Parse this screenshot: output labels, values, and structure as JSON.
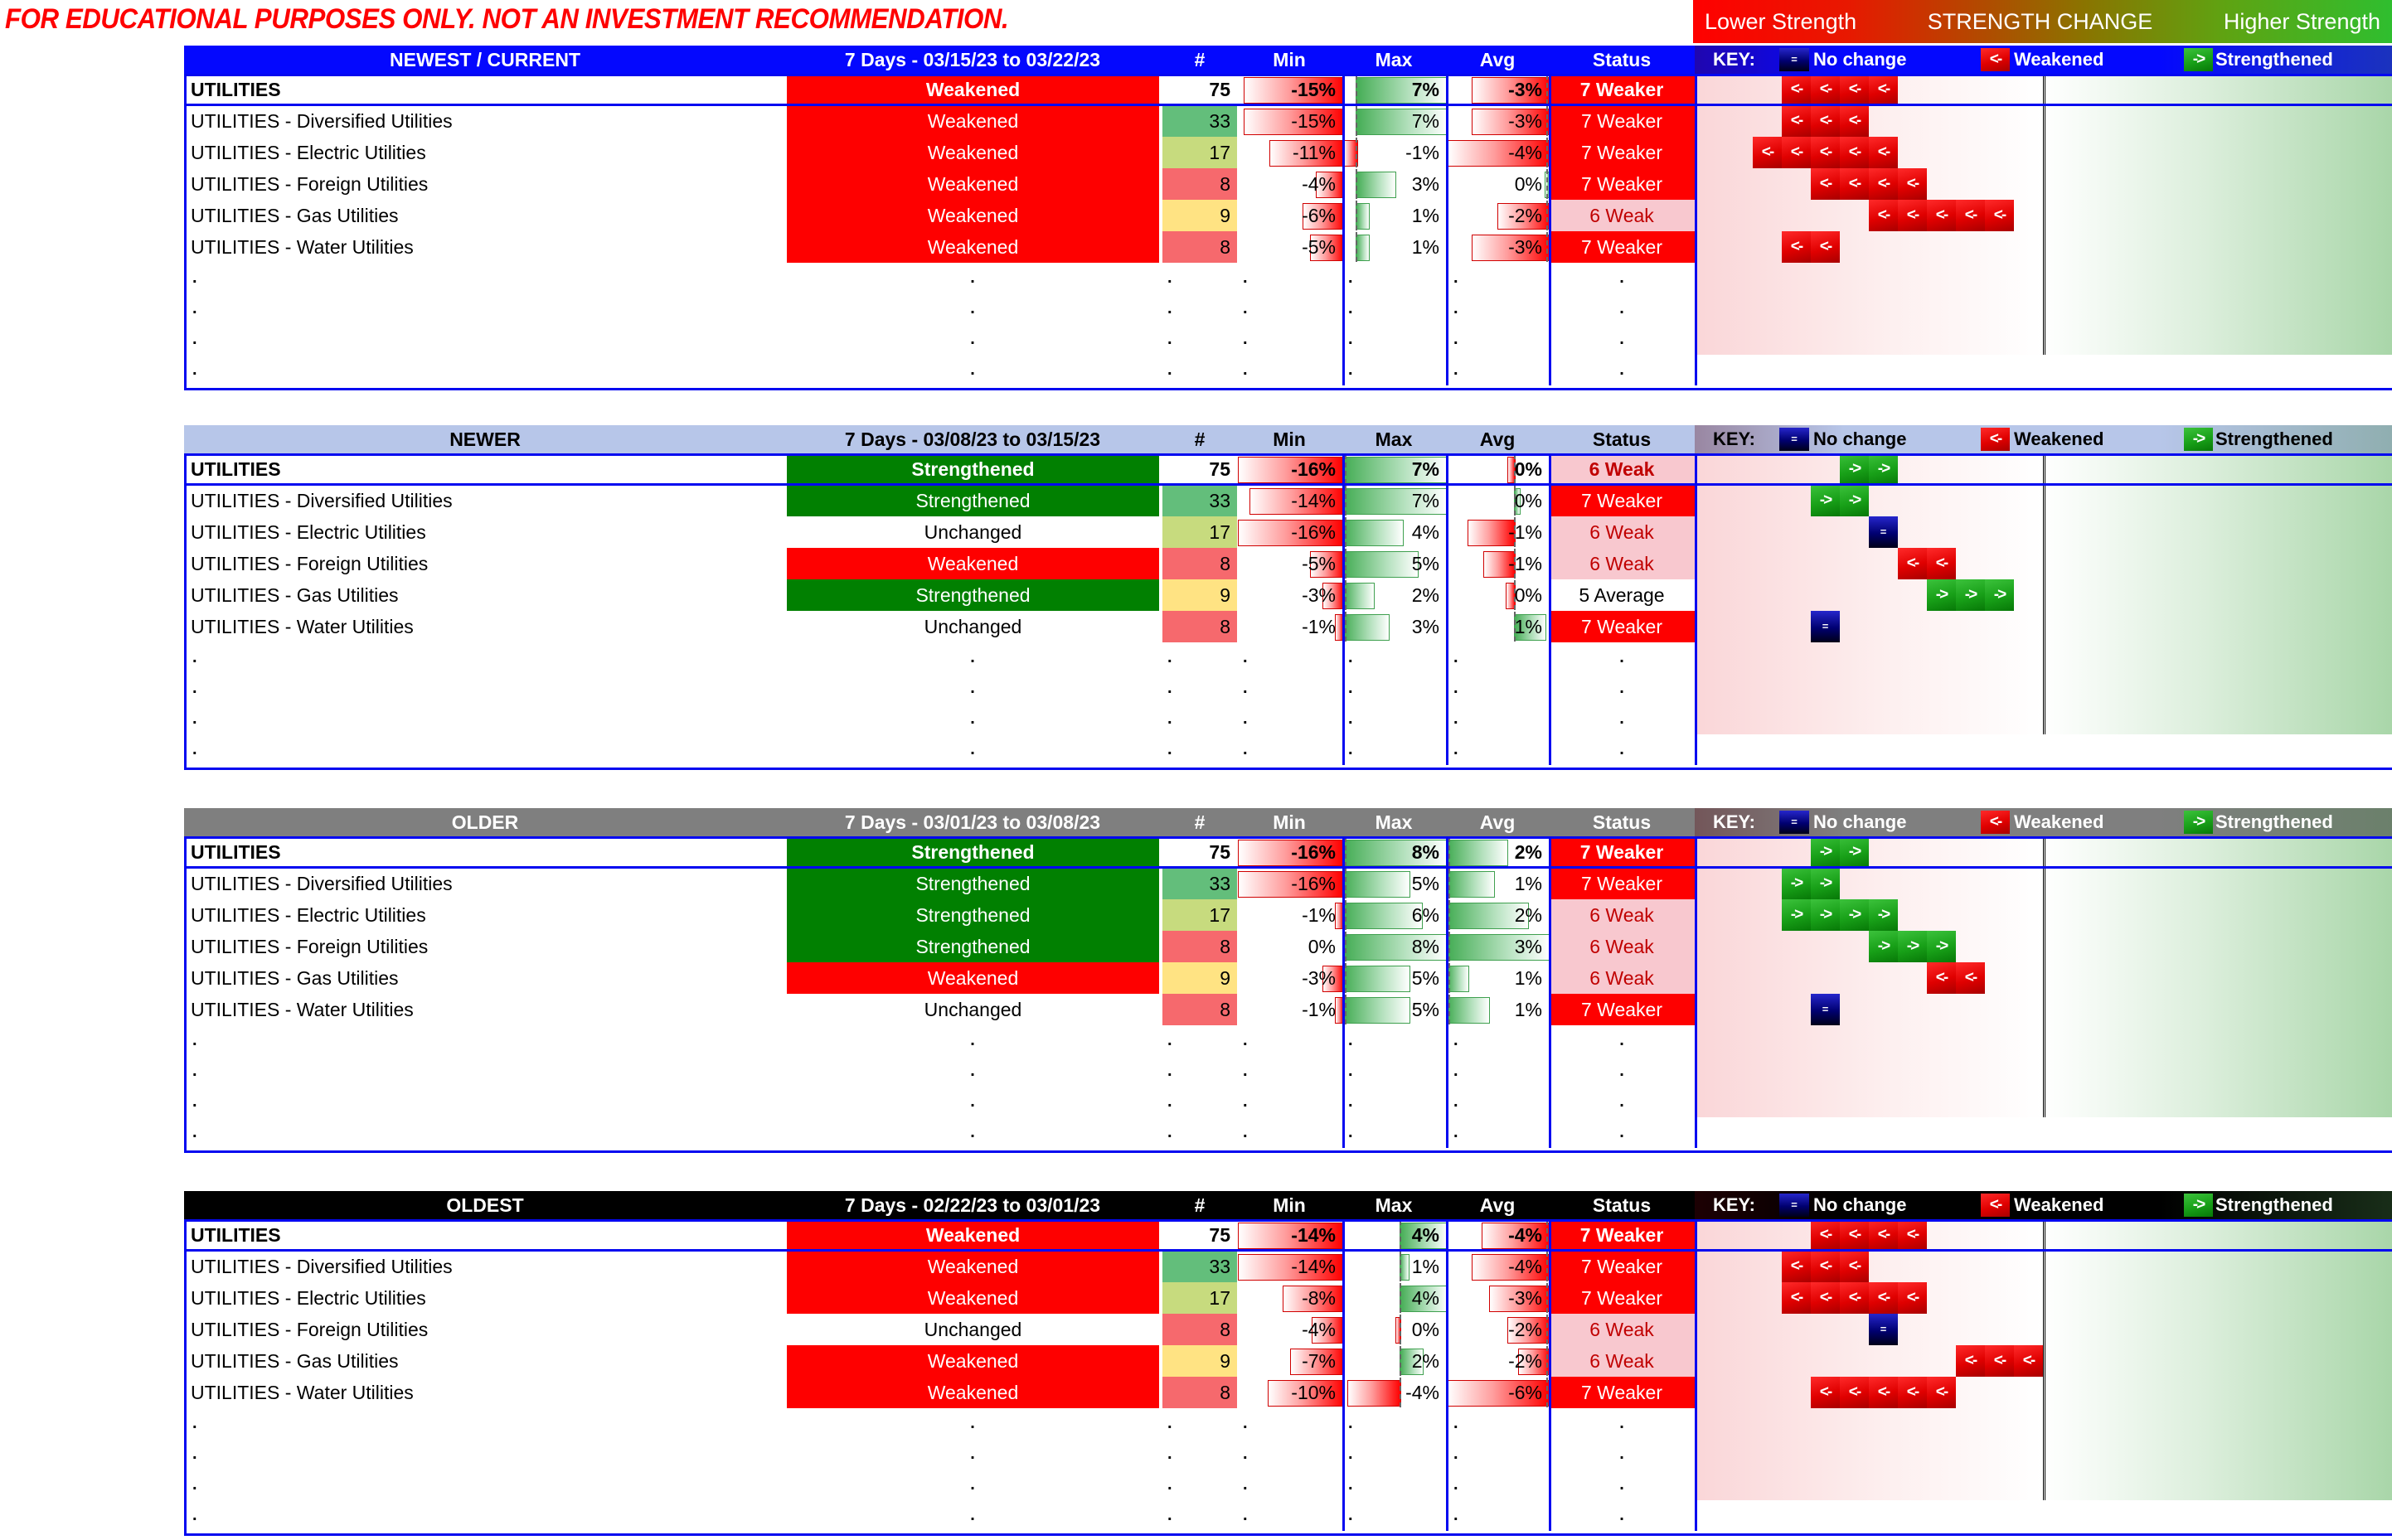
{
  "disclaimer": "FOR EDUCATIONAL PURPOSES ONLY. NOT AN INVESTMENT RECOMMENDATION.",
  "strength_scale": {
    "left": "Lower Strength",
    "center": "STRENGTH CHANGE",
    "right": "Higher Strength"
  },
  "legend": {
    "key_label": "KEY:",
    "no_change": "No change",
    "weakened": "Weakened",
    "strengthened": "Strengthened",
    "no_change_glyph": "=",
    "weakened_glyph": "<-",
    "strengthened_glyph": "->"
  },
  "columns": {
    "num": "#",
    "min": "Min",
    "max": "Max",
    "avg": "Avg",
    "status": "Status"
  },
  "dot": ".",
  "colors": {
    "blue_border": "#0408F0",
    "weakened_bg": "#FE0000",
    "strengthened_bg": "#018001",
    "status_weaker_bg": "#FE0000",
    "status_weak_bg": "#F8C8CF",
    "status_weak_fg": "#C00000",
    "count_scale": [
      "#63BE7B",
      "#C7DB7E",
      "#F6696D",
      "#FFE383"
    ]
  },
  "tables": [
    {
      "period_label": "NEWEST / CURRENT",
      "date_range": "7 Days - 03/15/23 to 03/22/23",
      "header_bg": "#0408FE",
      "header_fg": "#FFFFFF",
      "rows": [
        {
          "name": "UTILITIES",
          "change": "Weakened",
          "num": "75",
          "num_bg": "#FFFFFF",
          "min": "-15%",
          "max": "7%",
          "avg": "-3%",
          "status": "7 Weaker",
          "summary": true,
          "bmin": [
            1,
            -0.94,
            "r"
          ],
          "bmax": [
            0.125,
            0.875,
            "g"
          ],
          "bavg": [
            1,
            -0.75,
            "r"
          ],
          "arrows": {
            "c": "red",
            "o": 3,
            "n": 4
          }
        },
        {
          "name": "UTILITIES - Diversified Utilities",
          "change": "Weakened",
          "num": "33",
          "num_bg": "#63BE7B",
          "min": "-15%",
          "max": "7%",
          "avg": "-3%",
          "status": "7 Weaker",
          "summary": false,
          "bmin": [
            1,
            -0.94,
            "r"
          ],
          "bmax": [
            0.125,
            0.875,
            "g"
          ],
          "bavg": [
            1,
            -0.75,
            "r"
          ],
          "arrows": {
            "c": "red",
            "o": 3,
            "n": 3
          }
        },
        {
          "name": "UTILITIES - Electric Utilities",
          "change": "Weakened",
          "num": "17",
          "num_bg": "#C7DB7E",
          "min": "-11%",
          "max": "-1%",
          "avg": "-4%",
          "status": "7 Weaker",
          "summary": false,
          "bmin": [
            1,
            -0.69,
            "r"
          ],
          "bmax": [
            0.125,
            -0.125,
            "r"
          ],
          "bavg": [
            1,
            -0.98,
            "r"
          ],
          "arrows": {
            "c": "red",
            "o": 2,
            "n": 5
          }
        },
        {
          "name": "UTILITIES - Foreign Utilities",
          "change": "Weakened",
          "num": "8",
          "num_bg": "#F6696D",
          "min": "-4%",
          "max": "3%",
          "avg": "0%",
          "status": "7 Weaker",
          "summary": false,
          "bmin": [
            1,
            -0.25,
            "r"
          ],
          "bmax": [
            0.125,
            0.375,
            "g"
          ],
          "bavg": [
            1,
            -0.04,
            "g"
          ],
          "arrows": {
            "c": "red",
            "o": 4,
            "n": 4
          }
        },
        {
          "name": "UTILITIES - Gas Utilities",
          "change": "Weakened",
          "num": "9",
          "num_bg": "#FFE383",
          "min": "-6%",
          "max": "1%",
          "avg": "-2%",
          "status": "6 Weak",
          "summary": false,
          "bmin": [
            1,
            -0.38,
            "r"
          ],
          "bmax": [
            0.125,
            0.125,
            "g"
          ],
          "bavg": [
            1,
            -0.5,
            "r"
          ],
          "arrows": {
            "c": "red",
            "o": 6,
            "n": 5
          }
        },
        {
          "name": "UTILITIES - Water Utilities",
          "change": "Weakened",
          "num": "8",
          "num_bg": "#F6696D",
          "min": "-5%",
          "max": "1%",
          "avg": "-3%",
          "status": "7 Weaker",
          "summary": false,
          "bmin": [
            1,
            -0.31,
            "r"
          ],
          "bmax": [
            0.125,
            0.125,
            "g"
          ],
          "bavg": [
            1,
            -0.75,
            "r"
          ],
          "arrows": {
            "c": "red",
            "o": 3,
            "n": 2
          }
        }
      ]
    },
    {
      "period_label": "NEWER",
      "date_range": "7 Days - 03/08/23 to 03/15/23",
      "header_bg": "#B7C6E9",
      "header_fg": "#000000",
      "rows": [
        {
          "name": "UTILITIES",
          "change": "Strengthened",
          "num": "75",
          "num_bg": "#FFFFFF",
          "min": "-16%",
          "max": "7%",
          "avg": "0%",
          "status": "6 Weak",
          "summary": true,
          "bmin": [
            1,
            -1,
            "r"
          ],
          "bmax": [
            0,
            1,
            "g"
          ],
          "bavg": [
            0.66,
            -0.06,
            "r"
          ],
          "arrows": {
            "c": "green",
            "o": 5,
            "n": 2
          }
        },
        {
          "name": "UTILITIES - Diversified Utilities",
          "change": "Strengthened",
          "num": "33",
          "num_bg": "#63BE7B",
          "min": "-14%",
          "max": "7%",
          "avg": "0%",
          "status": "7 Weaker",
          "summary": false,
          "bmin": [
            1,
            -0.88,
            "r"
          ],
          "bmax": [
            0,
            1,
            "g"
          ],
          "bavg": [
            0.66,
            0.05,
            "g"
          ],
          "arrows": {
            "c": "green",
            "o": 4,
            "n": 2
          }
        },
        {
          "name": "UTILITIES - Electric Utilities",
          "change": "Unchanged",
          "num": "17",
          "num_bg": "#C7DB7E",
          "min": "-16%",
          "max": "4%",
          "avg": "-1%",
          "status": "6 Weak",
          "summary": false,
          "bmin": [
            1,
            -1,
            "r"
          ],
          "bmax": [
            0,
            0.57,
            "g"
          ],
          "bavg": [
            0.66,
            -0.45,
            "r"
          ],
          "arrows": {
            "c": "navy",
            "o": 6,
            "n": 1
          }
        },
        {
          "name": "UTILITIES - Foreign Utilities",
          "change": "Weakened",
          "num": "8",
          "num_bg": "#F6696D",
          "min": "-5%",
          "max": "5%",
          "avg": "-1%",
          "status": "6 Weak",
          "summary": false,
          "bmin": [
            1,
            -0.31,
            "r"
          ],
          "bmax": [
            0,
            0.71,
            "g"
          ],
          "bavg": [
            0.66,
            -0.3,
            "r"
          ],
          "arrows": {
            "c": "red",
            "o": 7,
            "n": 2
          }
        },
        {
          "name": "UTILITIES - Gas Utilities",
          "change": "Strengthened",
          "num": "9",
          "num_bg": "#FFE383",
          "min": "-3%",
          "max": "2%",
          "avg": "0%",
          "status": "5 Average",
          "summary": false,
          "bmin": [
            1,
            -0.19,
            "r"
          ],
          "bmax": [
            0,
            0.29,
            "g"
          ],
          "bavg": [
            0.66,
            -0.08,
            "r"
          ],
          "arrows": {
            "c": "green",
            "o": 8,
            "n": 3
          }
        },
        {
          "name": "UTILITIES - Water Utilities",
          "change": "Unchanged",
          "num": "8",
          "num_bg": "#F6696D",
          "min": "-1%",
          "max": "3%",
          "avg": "1%",
          "status": "7 Weaker",
          "summary": false,
          "bmin": [
            1,
            -0.07,
            "r"
          ],
          "bmax": [
            0,
            0.43,
            "g"
          ],
          "bavg": [
            0.66,
            0.3,
            "g"
          ],
          "arrows": {
            "c": "navy",
            "o": 4,
            "n": 1
          }
        }
      ]
    },
    {
      "period_label": "OLDER",
      "date_range": "7 Days - 03/01/23 to 03/08/23",
      "header_bg": "#7F7F7F",
      "header_fg": "#FFFFFF",
      "rows": [
        {
          "name": "UTILITIES",
          "change": "Strengthened",
          "num": "75",
          "num_bg": "#FFFFFF",
          "min": "-16%",
          "max": "8%",
          "avg": "2%",
          "status": "7 Weaker",
          "summary": true,
          "bmin": [
            1,
            -1,
            "r"
          ],
          "bmax": [
            0,
            1,
            "g"
          ],
          "bavg": [
            0,
            0.58,
            "g"
          ],
          "arrows": {
            "c": "green",
            "o": 4,
            "n": 2
          }
        },
        {
          "name": "UTILITIES - Diversified Utilities",
          "change": "Strengthened",
          "num": "33",
          "num_bg": "#63BE7B",
          "min": "-16%",
          "max": "5%",
          "avg": "1%",
          "status": "7 Weaker",
          "summary": false,
          "bmin": [
            1,
            -1,
            "r"
          ],
          "bmax": [
            0,
            0.63,
            "g"
          ],
          "bavg": [
            0,
            0.45,
            "g"
          ],
          "arrows": {
            "c": "green",
            "o": 3,
            "n": 2
          }
        },
        {
          "name": "UTILITIES - Electric Utilities",
          "change": "Strengthened",
          "num": "17",
          "num_bg": "#C7DB7E",
          "min": "-1%",
          "max": "6%",
          "avg": "2%",
          "status": "6 Weak",
          "summary": false,
          "bmin": [
            1,
            -0.07,
            "r"
          ],
          "bmax": [
            0,
            0.75,
            "g"
          ],
          "bavg": [
            0,
            0.78,
            "g"
          ],
          "arrows": {
            "c": "green",
            "o": 3,
            "n": 4
          }
        },
        {
          "name": "UTILITIES - Foreign Utilities",
          "change": "Strengthened",
          "num": "8",
          "num_bg": "#F6696D",
          "min": "0%",
          "max": "8%",
          "avg": "3%",
          "status": "6 Weak",
          "summary": false,
          "bmin": [
            1,
            0,
            "r"
          ],
          "bmax": [
            0,
            1,
            "g"
          ],
          "bavg": [
            0,
            0.98,
            "g"
          ],
          "arrows": {
            "c": "green",
            "o": 6,
            "n": 3
          }
        },
        {
          "name": "UTILITIES - Gas Utilities",
          "change": "Weakened",
          "num": "9",
          "num_bg": "#FFE383",
          "min": "-3%",
          "max": "5%",
          "avg": "1%",
          "status": "6 Weak",
          "summary": false,
          "bmin": [
            1,
            -0.19,
            "r"
          ],
          "bmax": [
            0,
            0.63,
            "g"
          ],
          "bavg": [
            0,
            0.2,
            "g"
          ],
          "arrows": {
            "c": "red",
            "o": 8,
            "n": 2
          }
        },
        {
          "name": "UTILITIES - Water Utilities",
          "change": "Unchanged",
          "num": "8",
          "num_bg": "#F6696D",
          "min": "-1%",
          "max": "5%",
          "avg": "1%",
          "status": "7 Weaker",
          "summary": false,
          "bmin": [
            1,
            -0.07,
            "r"
          ],
          "bmax": [
            0,
            0.63,
            "g"
          ],
          "bavg": [
            0,
            0.4,
            "g"
          ],
          "arrows": {
            "c": "navy",
            "o": 4,
            "n": 1
          }
        }
      ]
    },
    {
      "period_label": "OLDEST",
      "date_range": "7 Days - 02/22/23 to 03/01/23",
      "header_bg": "#000000",
      "header_fg": "#FFFFFF",
      "rows": [
        {
          "name": "UTILITIES",
          "change": "Weakened",
          "num": "75",
          "num_bg": "#FFFFFF",
          "min": "-14%",
          "max": "4%",
          "avg": "-4%",
          "status": "7 Weaker",
          "summary": true,
          "bmin": [
            1,
            -1,
            "r"
          ],
          "bmax": [
            0.55,
            0.45,
            "g"
          ],
          "bavg": [
            1,
            -0.65,
            "r"
          ],
          "arrows": {
            "c": "red",
            "o": 4,
            "n": 4
          }
        },
        {
          "name": "UTILITIES - Diversified Utilities",
          "change": "Weakened",
          "num": "33",
          "num_bg": "#63BE7B",
          "min": "-14%",
          "max": "1%",
          "avg": "-4%",
          "status": "7 Weaker",
          "summary": false,
          "bmin": [
            1,
            -1,
            "r"
          ],
          "bmax": [
            0.55,
            0.08,
            "g"
          ],
          "bavg": [
            1,
            -0.75,
            "r"
          ],
          "arrows": {
            "c": "red",
            "o": 3,
            "n": 3
          }
        },
        {
          "name": "UTILITIES - Electric Utilities",
          "change": "Weakened",
          "num": "17",
          "num_bg": "#C7DB7E",
          "min": "-8%",
          "max": "4%",
          "avg": "-3%",
          "status": "7 Weaker",
          "summary": false,
          "bmin": [
            1,
            -0.57,
            "r"
          ],
          "bmax": [
            0.55,
            0.45,
            "g"
          ],
          "bavg": [
            1,
            -0.58,
            "r"
          ],
          "arrows": {
            "c": "red",
            "o": 3,
            "n": 5
          }
        },
        {
          "name": "UTILITIES - Foreign Utilities",
          "change": "Unchanged",
          "num": "8",
          "num_bg": "#F6696D",
          "min": "-4%",
          "max": "0%",
          "avg": "-2%",
          "status": "6 Weak",
          "summary": false,
          "bmin": [
            1,
            -0.29,
            "r"
          ],
          "bmax": [
            0.55,
            -0.04,
            "r"
          ],
          "bavg": [
            1,
            -0.4,
            "r"
          ],
          "arrows": {
            "c": "navy",
            "o": 6,
            "n": 1
          }
        },
        {
          "name": "UTILITIES - Gas Utilities",
          "change": "Weakened",
          "num": "9",
          "num_bg": "#FFE383",
          "min": "-7%",
          "max": "2%",
          "avg": "-2%",
          "status": "6 Weak",
          "summary": false,
          "bmin": [
            1,
            -0.5,
            "r"
          ],
          "bmax": [
            0.55,
            0.22,
            "g"
          ],
          "bavg": [
            1,
            -0.3,
            "r"
          ],
          "arrows": {
            "c": "red",
            "o": 9,
            "n": 3
          }
        },
        {
          "name": "UTILITIES - Water Utilities",
          "change": "Weakened",
          "num": "8",
          "num_bg": "#F6696D",
          "min": "-10%",
          "max": "-4%",
          "avg": "-6%",
          "status": "7 Weaker",
          "summary": false,
          "bmin": [
            1,
            -0.71,
            "r"
          ],
          "bmax": [
            0.55,
            -0.5,
            "r"
          ],
          "bavg": [
            1,
            -1,
            "r"
          ],
          "arrows": {
            "c": "red",
            "o": 4,
            "n": 5
          }
        }
      ]
    }
  ]
}
